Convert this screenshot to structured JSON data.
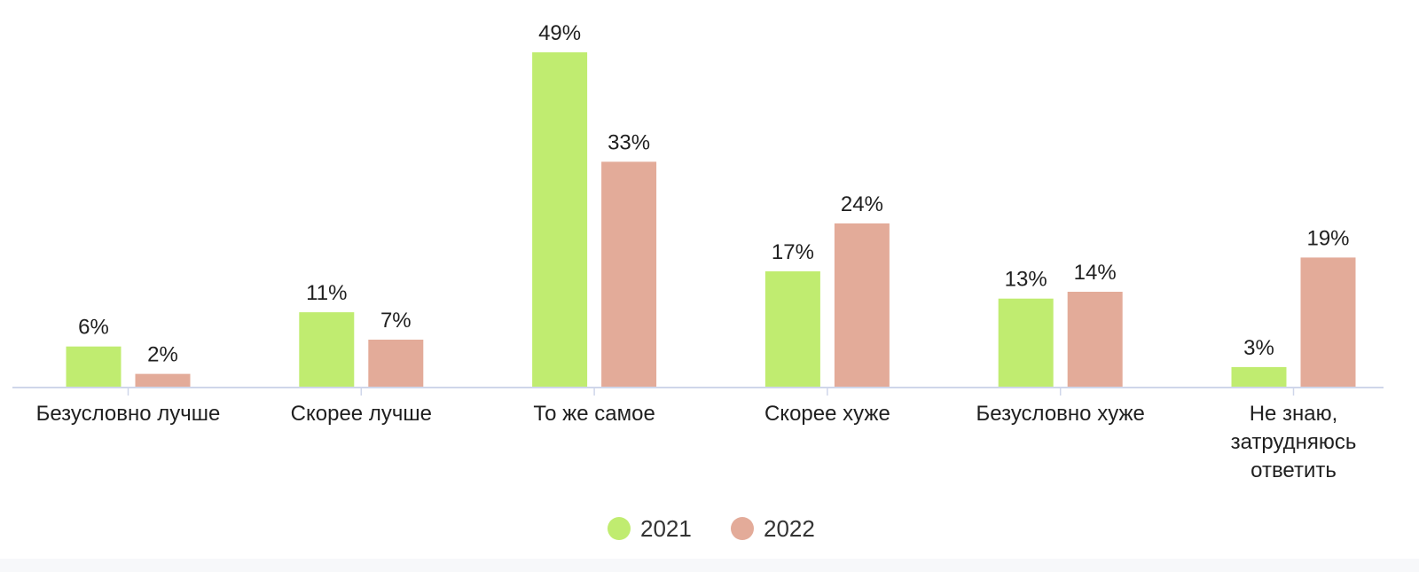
{
  "chart_data": {
    "type": "bar",
    "title": "",
    "xlabel": "",
    "ylabel": "",
    "ylim": [
      0,
      49
    ],
    "grid": false,
    "legend_position": "bottom-center",
    "categories": [
      [
        "Безусловно лучше"
      ],
      [
        "Скорее лучше"
      ],
      [
        "То же самое"
      ],
      [
        "Скорее хуже"
      ],
      [
        "Безусловно хуже"
      ],
      [
        "Не знаю,",
        "затрудняюсь",
        "ответить"
      ]
    ],
    "series": [
      {
        "name": "2021",
        "color": "#c0ec70",
        "values": [
          6,
          11,
          49,
          17,
          13,
          3
        ],
        "labels": [
          "6%",
          "11%",
          "49%",
          "17%",
          "13%",
          "3%"
        ]
      },
      {
        "name": "2022",
        "color": "#e3ab99",
        "values": [
          2,
          7,
          33,
          24,
          14,
          19
        ],
        "labels": [
          "2%",
          "7%",
          "33%",
          "24%",
          "14%",
          "19%"
        ]
      }
    ],
    "axis_color": "#cfd6ea"
  }
}
